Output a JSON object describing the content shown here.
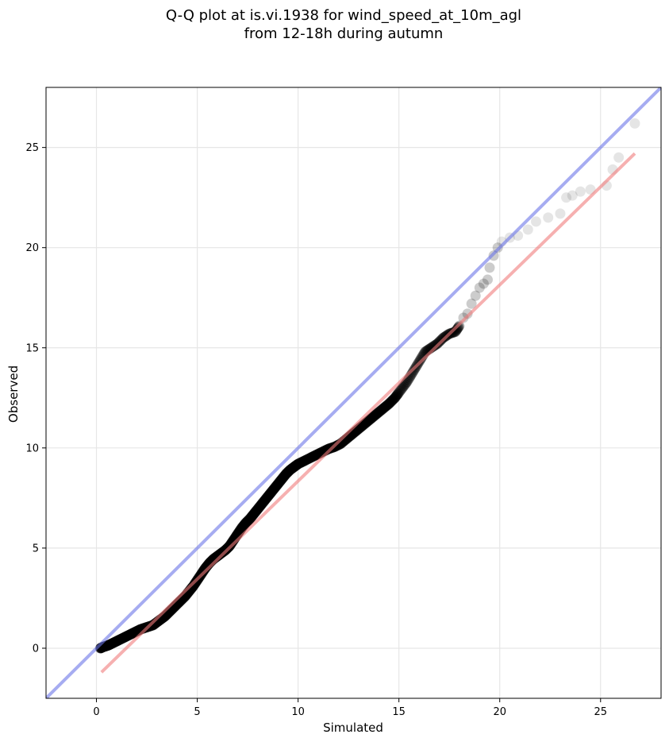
{
  "chart_data": {
    "type": "scatter",
    "title": "Q-Q plot at is.vi.1938 for wind_speed_at_10m_agl",
    "subtitle": "from 12-18h during autumn",
    "xlabel": "Simulated",
    "ylabel": "Observed",
    "xlim": [
      -2.5,
      28
    ],
    "ylim": [
      -2.5,
      28
    ],
    "xticks": [
      0,
      5,
      10,
      15,
      20,
      25
    ],
    "yticks": [
      0,
      5,
      10,
      15,
      20,
      25
    ],
    "grid": true,
    "colors": {
      "points": "#000000",
      "identity_line": "#6b74e8",
      "fit_line": "#f07b7b",
      "grid": "#e6e6e6"
    },
    "reference_lines": {
      "identity": {
        "x": [
          -2.5,
          28
        ],
        "y": [
          -2.5,
          28
        ]
      },
      "fit": {
        "x": [
          0.25,
          26.7
        ],
        "y": [
          -1.2,
          24.7
        ]
      }
    },
    "points": [
      [
        0.2,
        0.0
      ],
      [
        0.3,
        0.05
      ],
      [
        0.45,
        0.1
      ],
      [
        0.6,
        0.15
      ],
      [
        0.8,
        0.25
      ],
      [
        1.0,
        0.35
      ],
      [
        1.2,
        0.45
      ],
      [
        1.4,
        0.55
      ],
      [
        1.6,
        0.65
      ],
      [
        1.8,
        0.75
      ],
      [
        2.0,
        0.85
      ],
      [
        2.2,
        0.95
      ],
      [
        2.5,
        1.05
      ],
      [
        2.8,
        1.15
      ],
      [
        3.0,
        1.3
      ],
      [
        3.2,
        1.45
      ],
      [
        3.4,
        1.6
      ],
      [
        3.6,
        1.8
      ],
      [
        3.8,
        2.0
      ],
      [
        4.0,
        2.2
      ],
      [
        4.2,
        2.4
      ],
      [
        4.4,
        2.6
      ],
      [
        4.6,
        2.85
      ],
      [
        4.8,
        3.1
      ],
      [
        5.0,
        3.4
      ],
      [
        5.2,
        3.7
      ],
      [
        5.4,
        4.0
      ],
      [
        5.6,
        4.25
      ],
      [
        5.8,
        4.45
      ],
      [
        6.0,
        4.6
      ],
      [
        6.2,
        4.75
      ],
      [
        6.4,
        4.9
      ],
      [
        6.6,
        5.1
      ],
      [
        6.8,
        5.4
      ],
      [
        7.0,
        5.7
      ],
      [
        7.2,
        6.0
      ],
      [
        7.4,
        6.25
      ],
      [
        7.6,
        6.45
      ],
      [
        7.8,
        6.7
      ],
      [
        8.0,
        6.95
      ],
      [
        8.2,
        7.2
      ],
      [
        8.4,
        7.45
      ],
      [
        8.6,
        7.7
      ],
      [
        8.8,
        7.95
      ],
      [
        9.0,
        8.2
      ],
      [
        9.2,
        8.45
      ],
      [
        9.4,
        8.7
      ],
      [
        9.6,
        8.9
      ],
      [
        9.8,
        9.05
      ],
      [
        10.0,
        9.2
      ],
      [
        10.3,
        9.35
      ],
      [
        10.6,
        9.5
      ],
      [
        10.9,
        9.65
      ],
      [
        11.2,
        9.8
      ],
      [
        11.5,
        9.95
      ],
      [
        11.8,
        10.05
      ],
      [
        12.1,
        10.2
      ],
      [
        12.4,
        10.45
      ],
      [
        12.7,
        10.7
      ],
      [
        13.0,
        10.95
      ],
      [
        13.3,
        11.2
      ],
      [
        13.6,
        11.45
      ],
      [
        13.9,
        11.7
      ],
      [
        14.2,
        11.95
      ],
      [
        14.5,
        12.2
      ],
      [
        14.8,
        12.5
      ],
      [
        15.1,
        12.9
      ],
      [
        15.4,
        13.3
      ],
      [
        15.7,
        13.8
      ],
      [
        16.0,
        14.3
      ],
      [
        16.3,
        14.8
      ],
      [
        16.6,
        15.0
      ],
      [
        16.9,
        15.2
      ],
      [
        17.2,
        15.5
      ],
      [
        17.5,
        15.7
      ],
      [
        17.8,
        15.8
      ],
      [
        18.0,
        16.1
      ],
      [
        18.2,
        16.5
      ],
      [
        18.4,
        16.7
      ],
      [
        18.6,
        17.2
      ],
      [
        18.8,
        17.6
      ],
      [
        19.0,
        18.0
      ],
      [
        19.2,
        18.2
      ],
      [
        19.4,
        18.4
      ],
      [
        19.5,
        19.0
      ],
      [
        19.7,
        19.6
      ],
      [
        19.9,
        20.0
      ],
      [
        20.1,
        20.3
      ],
      [
        20.5,
        20.5
      ],
      [
        20.9,
        20.6
      ],
      [
        21.4,
        20.9
      ],
      [
        21.8,
        21.3
      ],
      [
        22.4,
        21.5
      ],
      [
        23.0,
        21.7
      ],
      [
        23.3,
        22.5
      ],
      [
        23.6,
        22.6
      ],
      [
        24.0,
        22.8
      ],
      [
        24.5,
        22.9
      ],
      [
        25.3,
        23.1
      ],
      [
        25.6,
        23.9
      ],
      [
        25.9,
        24.5
      ],
      [
        26.7,
        26.2
      ]
    ]
  }
}
